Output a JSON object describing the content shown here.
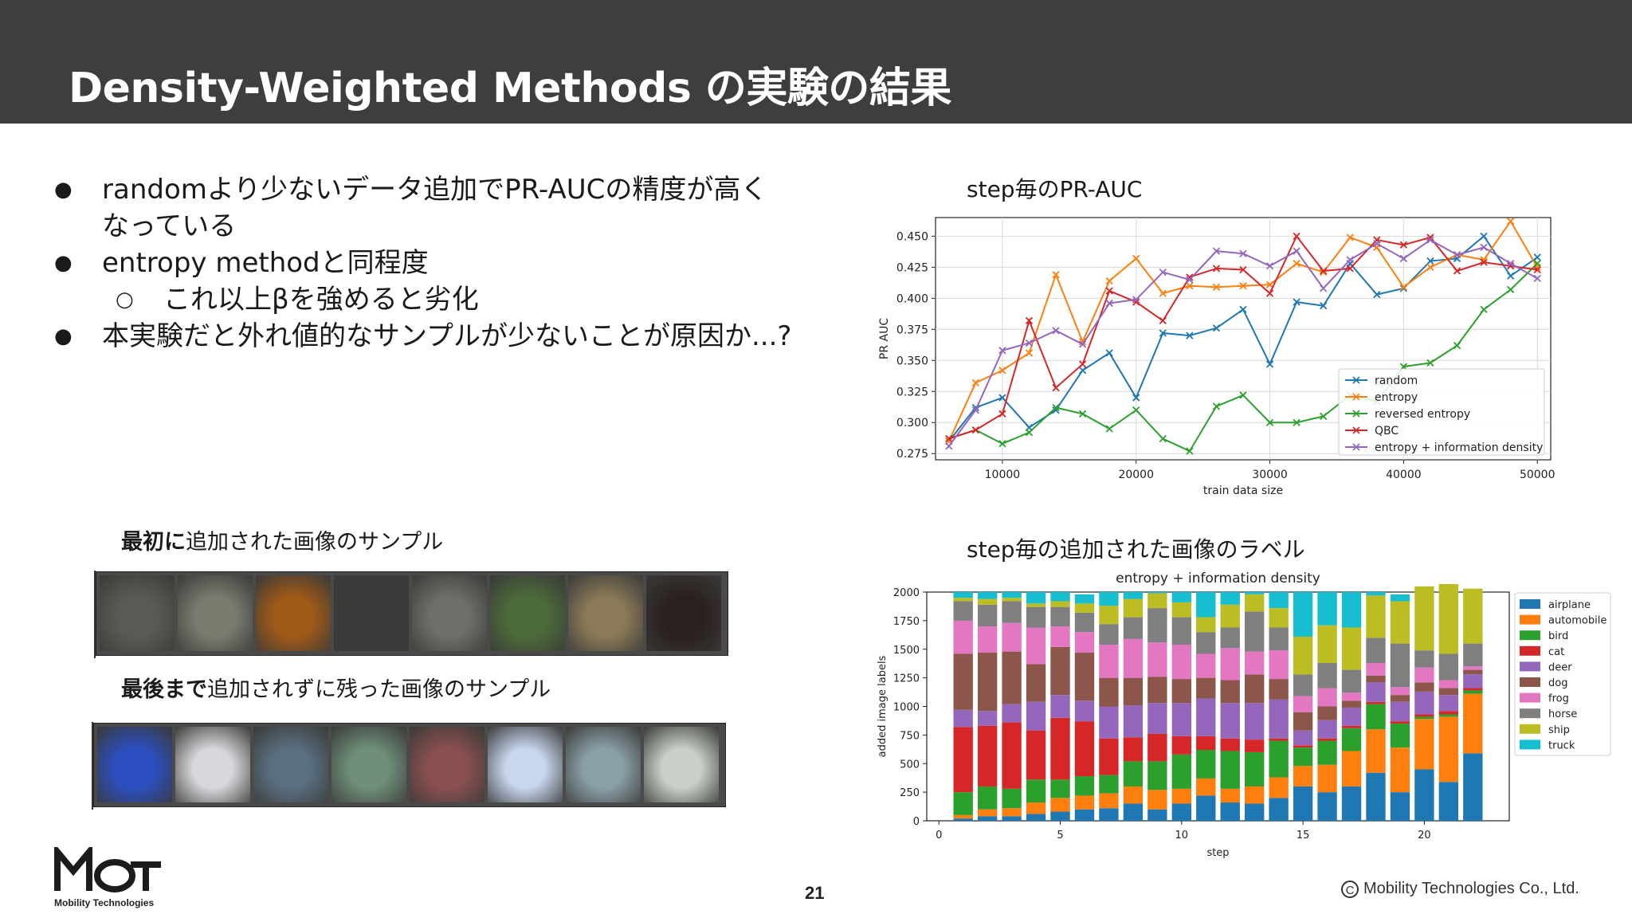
{
  "slide": {
    "title": "Density-Weighted Methods の実験の結果",
    "page_number": "21",
    "copyright": "Mobility Technologies Co., Ltd.",
    "copyright_symbol": "C",
    "logo_label": "Mobility Technologies",
    "bullets": [
      {
        "marker": "●",
        "text": "randomより少ないデータ追加でPR-AUCの精度が高く"
      },
      {
        "marker": "",
        "text": "なっている"
      },
      {
        "marker": "●",
        "text": "entropy methodと同程度"
      },
      {
        "marker": "○",
        "text": "これ以上βを強めると劣化"
      },
      {
        "marker": "●",
        "text": "本実験だと外れ値的なサンプルが少ないことが原因か...?"
      }
    ],
    "sample_first_label_bold": "最初に",
    "sample_first_label_rest": "追加された画像のサンプル",
    "sample_last_label_bold": "最後まで",
    "sample_last_label_rest": "追加されずに残った画像のサンプル",
    "chart1_heading": "step毎のPR-AUC",
    "chart2_heading": "step毎の追加された画像のラベル",
    "first_thumb_colors": [
      "#5a5a55",
      "#7b7b70",
      "#a05a18",
      "#3b3b3b",
      "#6e6e6a",
      "#4c6b3a",
      "#8a7a58",
      "#2a2020"
    ],
    "last_thumb_colors": [
      "#2b4fc0",
      "#d8d8dc",
      "#5a6f80",
      "#6f8f7a",
      "#8a5050",
      "#c8d6ee",
      "#8aa0a8",
      "#c8d0c8"
    ]
  },
  "chart_data": [
    {
      "type": "line",
      "xlabel": "train data size",
      "ylabel": "PR AUC",
      "xlim": [
        5000,
        51000
      ],
      "ylim": [
        0.27,
        0.465
      ],
      "xticks": [
        10000,
        20000,
        30000,
        40000,
        50000
      ],
      "yticks": [
        0.275,
        0.3,
        0.325,
        0.35,
        0.375,
        0.4,
        0.425,
        0.45
      ],
      "ytick_labels": [
        "0.275",
        "0.300",
        "0.325",
        "0.350",
        "0.375",
        "0.400",
        "0.425",
        "0.450"
      ],
      "x": [
        6000,
        8000,
        10000,
        12000,
        14000,
        16000,
        18000,
        20000,
        22000,
        24000,
        26000,
        28000,
        30000,
        32000,
        34000,
        36000,
        38000,
        40000,
        42000,
        44000,
        46000,
        48000,
        50000
      ],
      "grid": true,
      "legend_position": "lower-right",
      "marker": "x",
      "series": [
        {
          "name": "random",
          "color": "#1f77b4",
          "values": [
            0.285,
            0.312,
            0.32,
            0.296,
            0.31,
            0.342,
            0.356,
            0.32,
            0.372,
            0.37,
            0.376,
            0.391,
            0.347,
            0.397,
            0.394,
            0.428,
            0.403,
            0.408,
            0.43,
            0.432,
            0.45,
            0.418,
            0.433
          ]
        },
        {
          "name": "entropy",
          "color": "#ff7f0e",
          "values": [
            0.285,
            0.332,
            0.342,
            0.356,
            0.419,
            0.365,
            0.414,
            0.432,
            0.404,
            0.41,
            0.409,
            0.41,
            0.411,
            0.428,
            0.421,
            0.449,
            0.441,
            0.409,
            0.425,
            0.435,
            0.431,
            0.462,
            0.425
          ]
        },
        {
          "name": "reversed entropy",
          "color": "#2ca02c",
          "values": [
            0.287,
            0.294,
            0.283,
            0.292,
            0.312,
            0.307,
            0.295,
            0.31,
            0.287,
            0.277,
            0.313,
            0.322,
            0.3,
            0.3,
            0.305,
            0.322,
            0.317,
            0.345,
            0.348,
            0.362,
            0.391,
            0.407,
            0.428
          ]
        },
        {
          "name": "QBC",
          "color": "#d62728",
          "values": [
            0.287,
            0.294,
            0.307,
            0.382,
            0.328,
            0.347,
            0.406,
            0.397,
            0.382,
            0.417,
            0.424,
            0.423,
            0.404,
            0.45,
            0.422,
            0.424,
            0.447,
            0.443,
            0.449,
            0.422,
            0.429,
            0.426,
            0.423
          ]
        },
        {
          "name": "entropy + information density",
          "color": "#9467bd",
          "values": [
            0.281,
            0.31,
            0.358,
            0.364,
            0.374,
            0.363,
            0.396,
            0.399,
            0.421,
            0.415,
            0.438,
            0.436,
            0.426,
            0.438,
            0.408,
            0.431,
            0.444,
            0.432,
            0.447,
            0.435,
            0.441,
            0.428,
            0.416
          ]
        }
      ]
    },
    {
      "type": "bar",
      "stacked": true,
      "title": "entropy + information density",
      "xlabel": "step",
      "ylabel": "added image labels",
      "xlim": [
        -0.5,
        23.5
      ],
      "ylim": [
        0,
        2000
      ],
      "xticks": [
        0,
        5,
        10,
        15,
        20
      ],
      "yticks": [
        0,
        250,
        500,
        750,
        1000,
        1250,
        1500,
        1750,
        2000
      ],
      "steps": [
        1,
        2,
        3,
        4,
        5,
        6,
        7,
        8,
        9,
        10,
        11,
        12,
        13,
        14,
        15,
        16,
        17,
        18,
        19,
        20,
        21,
        22
      ],
      "legend_position": "right",
      "series": [
        {
          "name": "airplane",
          "color": "#1f77b4",
          "values": [
            20,
            40,
            40,
            60,
            80,
            100,
            110,
            150,
            100,
            150,
            220,
            160,
            150,
            200,
            300,
            250,
            300,
            420,
            250,
            450,
            340,
            590
          ]
        },
        {
          "name": "automobile",
          "color": "#ff7f0e",
          "values": [
            30,
            60,
            70,
            100,
            120,
            120,
            130,
            150,
            170,
            130,
            150,
            120,
            150,
            180,
            180,
            240,
            310,
            380,
            390,
            440,
            570,
            520
          ]
        },
        {
          "name": "bird",
          "color": "#2ca02c",
          "values": [
            200,
            200,
            170,
            200,
            160,
            170,
            160,
            220,
            250,
            300,
            250,
            330,
            300,
            320,
            160,
            210,
            200,
            220,
            210,
            20,
            20,
            30
          ]
        },
        {
          "name": "cat",
          "color": "#d62728",
          "values": [
            570,
            530,
            580,
            430,
            540,
            480,
            320,
            210,
            240,
            160,
            120,
            110,
            110,
            20,
            20,
            20,
            20,
            20,
            20,
            20,
            30,
            20
          ]
        },
        {
          "name": "deer",
          "color": "#9467bd",
          "values": [
            150,
            130,
            160,
            250,
            200,
            180,
            280,
            280,
            270,
            290,
            330,
            310,
            320,
            340,
            130,
            160,
            160,
            170,
            170,
            200,
            140,
            120
          ]
        },
        {
          "name": "dog",
          "color": "#8c564b",
          "values": [
            490,
            510,
            460,
            330,
            420,
            420,
            250,
            240,
            230,
            210,
            180,
            200,
            250,
            180,
            160,
            120,
            60,
            60,
            60,
            80,
            60,
            40
          ]
        },
        {
          "name": "frog",
          "color": "#e377c2",
          "values": [
            290,
            230,
            250,
            320,
            180,
            180,
            290,
            340,
            300,
            300,
            210,
            280,
            200,
            250,
            140,
            160,
            70,
            110,
            70,
            130,
            70,
            30
          ]
        },
        {
          "name": "horse",
          "color": "#7f7f7f",
          "values": [
            170,
            190,
            190,
            180,
            170,
            170,
            180,
            190,
            300,
            240,
            190,
            180,
            350,
            200,
            190,
            220,
            200,
            220,
            380,
            150,
            230,
            200
          ]
        },
        {
          "name": "ship",
          "color": "#bcbd22",
          "values": [
            30,
            50,
            30,
            30,
            50,
            80,
            160,
            160,
            130,
            130,
            130,
            200,
            150,
            170,
            330,
            330,
            370,
            370,
            370,
            560,
            610,
            480
          ]
        },
        {
          "name": "truck",
          "color": "#17becf",
          "values": [
            50,
            60,
            50,
            100,
            80,
            80,
            120,
            60,
            10,
            90,
            220,
            110,
            20,
            140,
            390,
            290,
            310,
            30,
            60,
            0,
            0,
            0
          ]
        }
      ]
    }
  ]
}
